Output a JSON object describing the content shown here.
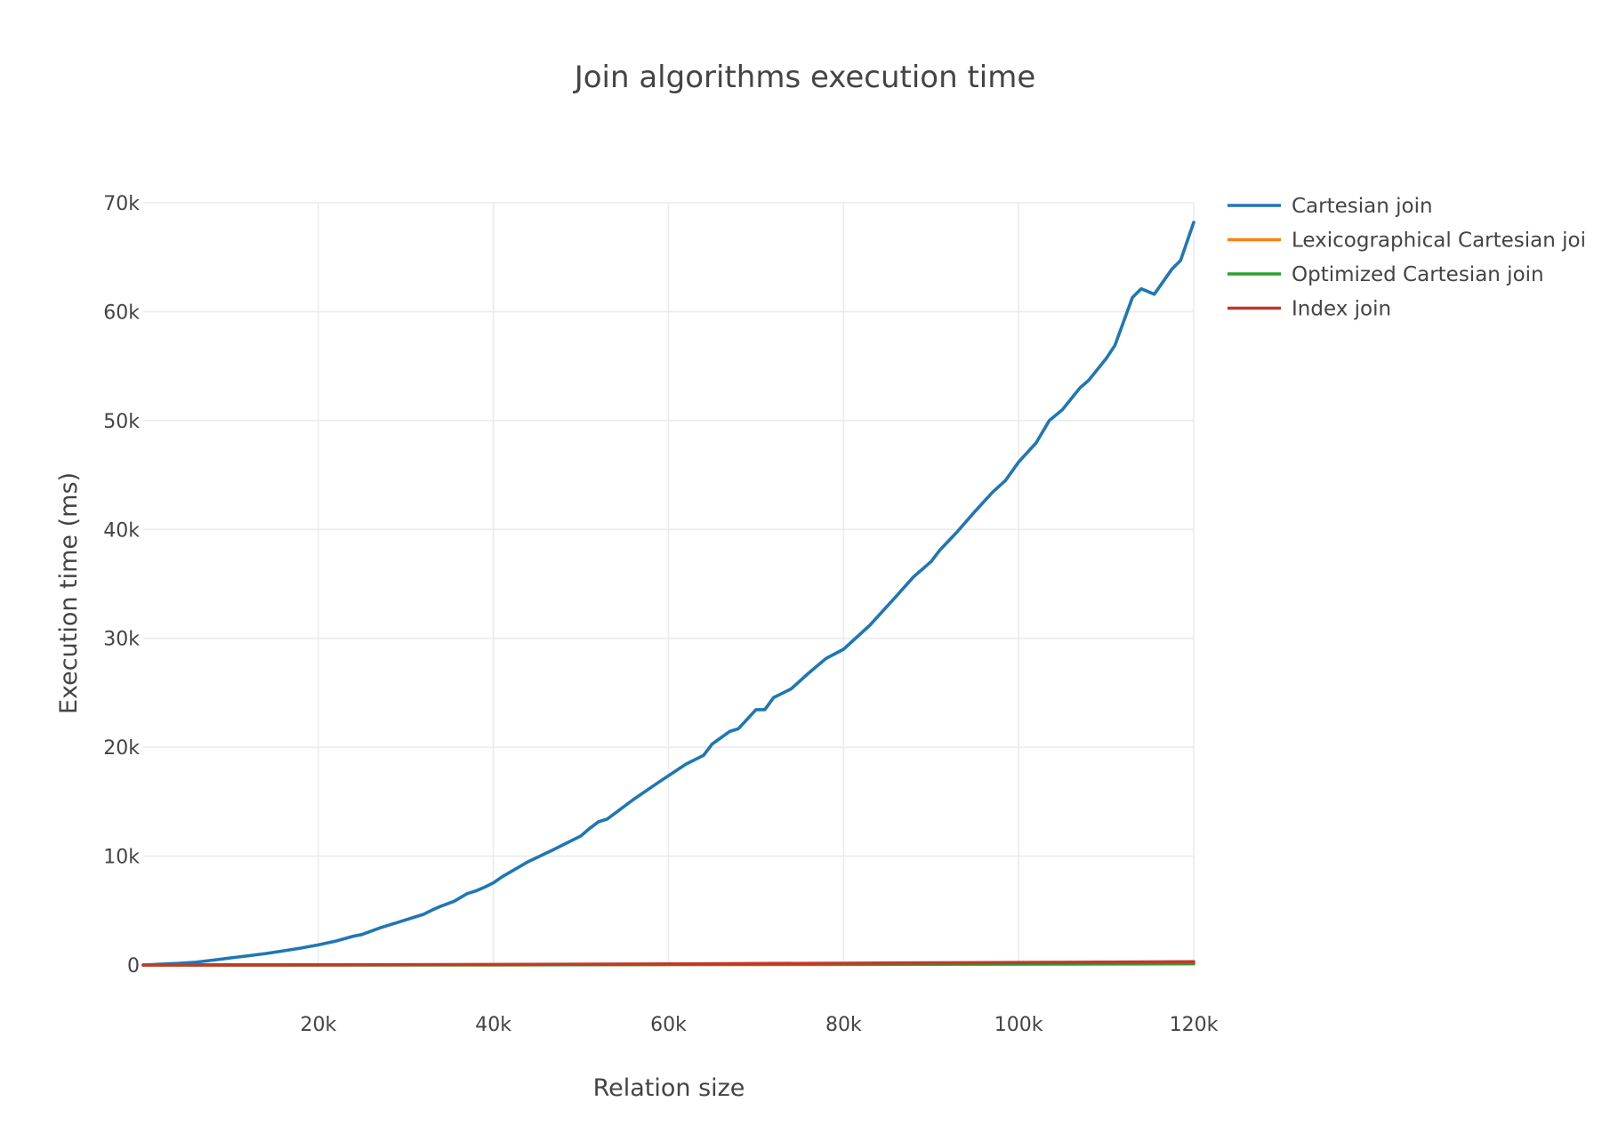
{
  "chart_data": {
    "type": "line",
    "title": "Join algorithms execution time",
    "xlabel": "Relation size",
    "ylabel": "Execution time (ms)",
    "xlim": [
      0,
      120000
    ],
    "ylim": [
      0,
      70000
    ],
    "x_ticks": [
      20000,
      40000,
      60000,
      80000,
      100000,
      120000
    ],
    "x_tick_labels": [
      "20k",
      "40k",
      "60k",
      "80k",
      "100k",
      "120k"
    ],
    "y_ticks": [
      0,
      10000,
      20000,
      30000,
      40000,
      50000,
      60000,
      70000
    ],
    "y_tick_labels": [
      "0",
      "10k",
      "20k",
      "30k",
      "40k",
      "50k",
      "60k",
      "70k"
    ],
    "grid": true,
    "legend": "right",
    "series": [
      {
        "name": "Cartesian join",
        "color": "#1f77b4",
        "x": [
          0,
          2000,
          4000,
          6000,
          8000,
          10000,
          12000,
          14000,
          16000,
          18000,
          20000,
          22000,
          24000,
          25000,
          27000,
          29000,
          31000,
          32000,
          33000,
          34000,
          35500,
          37000,
          38000,
          39000,
          40000,
          41000,
          44000,
          47000,
          50000,
          51000,
          52000,
          53000,
          56000,
          59000,
          62000,
          64000,
          65000,
          67000,
          68000,
          70000,
          71000,
          72000,
          74000,
          76000,
          78000,
          80000,
          83000,
          86000,
          88000,
          90000,
          91000,
          93000,
          95000,
          97000,
          98500,
          100000,
          102000,
          103500,
          105000,
          107000,
          108000,
          110000,
          111000,
          113000,
          114000,
          115500,
          117500,
          118500,
          120000
        ],
        "values": [
          0,
          80,
          150,
          250,
          450,
          650,
          850,
          1050,
          1300,
          1550,
          1850,
          2200,
          2650,
          2800,
          3400,
          3900,
          4400,
          4650,
          5050,
          5400,
          5850,
          6550,
          6800,
          7150,
          7550,
          8100,
          9500,
          10650,
          11850,
          12550,
          13150,
          13400,
          15200,
          16850,
          18450,
          19250,
          20300,
          21450,
          21700,
          23450,
          23450,
          24550,
          25350,
          26800,
          28150,
          29000,
          31200,
          33850,
          35650,
          37050,
          38100,
          39800,
          41650,
          43400,
          44500,
          46200,
          47950,
          50000,
          51000,
          53000,
          53700,
          55700,
          56900,
          61300,
          62100,
          61600,
          63900,
          64700,
          68200
        ]
      },
      {
        "name": "Lexicographical Cartesian joi",
        "color": "#ff7f0e",
        "x": [
          0,
          20000,
          40000,
          60000,
          80000,
          100000,
          120000
        ],
        "values": [
          0,
          10,
          20,
          40,
          60,
          80,
          110
        ]
      },
      {
        "name": "Optimized Cartesian join",
        "color": "#2ca02c",
        "x": [
          0,
          20000,
          40000,
          60000,
          80000,
          100000,
          120000
        ],
        "values": [
          0,
          10,
          20,
          40,
          60,
          90,
          120
        ]
      },
      {
        "name": "Index join",
        "color": "#c0392b",
        "x": [
          0,
          20000,
          40000,
          60000,
          80000,
          100000,
          120000
        ],
        "values": [
          0,
          20,
          50,
          100,
          160,
          230,
          300
        ]
      }
    ]
  }
}
